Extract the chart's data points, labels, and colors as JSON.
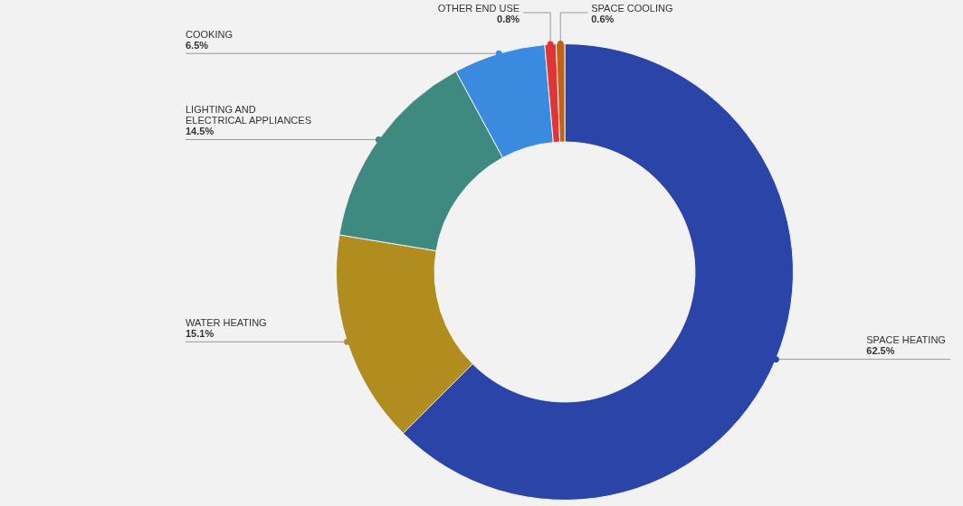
{
  "chart_data": {
    "type": "donut",
    "categories": [
      "SPACE HEATING",
      "WATER HEATING",
      "LIGHTING AND ELECTRICAL APPLIANCES",
      "COOKING",
      "OTHER END USE",
      "SPACE COOLING"
    ],
    "values": [
      62.5,
      15.1,
      14.5,
      6.5,
      0.8,
      0.6
    ],
    "colors": [
      "#2a44a8",
      "#b08d1e",
      "#3f8a80",
      "#3a8be0",
      "#e03535",
      "#c0621a"
    ],
    "value_labels": [
      "62.5%",
      "15.1%",
      "14.5%",
      "6.5%",
      "0.8%",
      "0.6%"
    ],
    "legend": false
  }
}
